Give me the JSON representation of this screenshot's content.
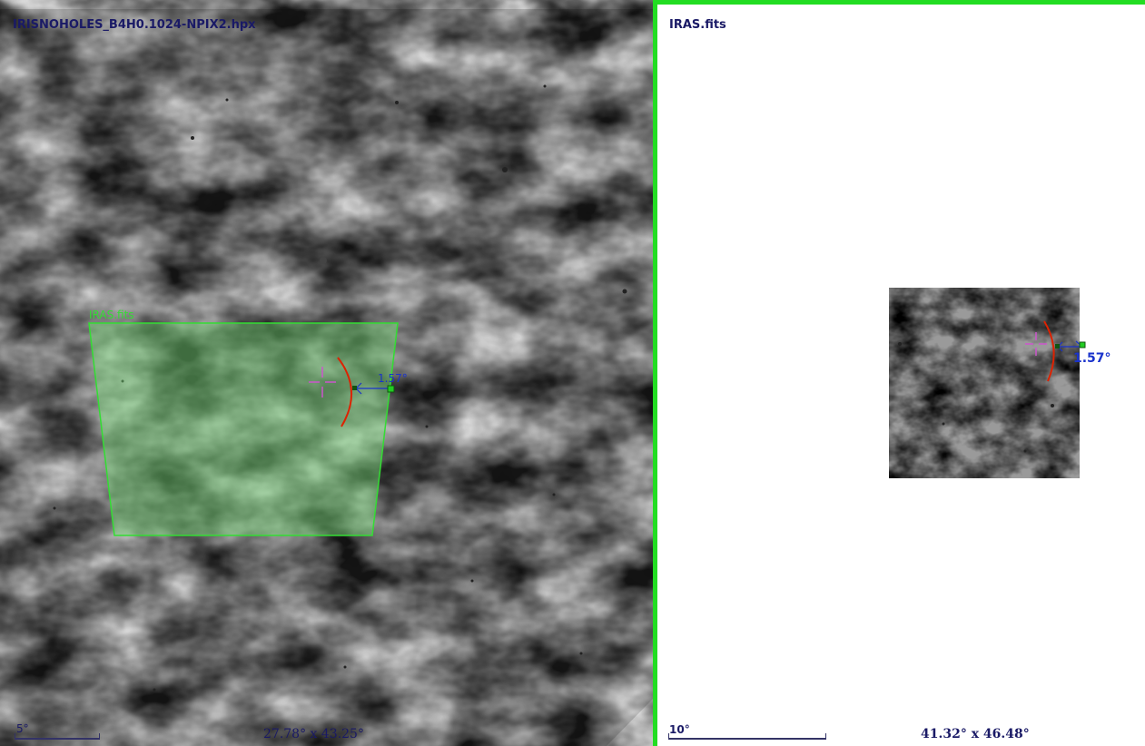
{
  "left_view": {
    "title": "IRISNOHOLES_B4H0.1024-NPIX2.hpx",
    "footprint_label": "IRAS.fits",
    "measure_label": "1.57°",
    "scale_label": "5°",
    "dimensions": "27.78° x 43.25°"
  },
  "right_view": {
    "title": "IRAS.fits",
    "measure_label": "1.57°",
    "scale_label": "10°",
    "dimensions": "41.32° x 46.48°",
    "selected": true
  },
  "colors": {
    "selection_border": "#22dd22",
    "footprint": "#33dd33",
    "marker_arc": "#dd2200",
    "reticle": "#cc55cc",
    "measure": "#1a33cc",
    "text": "#1a1a66"
  },
  "icons": {
    "reticle": "crosshair-icon",
    "arc": "red-arc-marker",
    "handle": "square-handle-icon"
  }
}
